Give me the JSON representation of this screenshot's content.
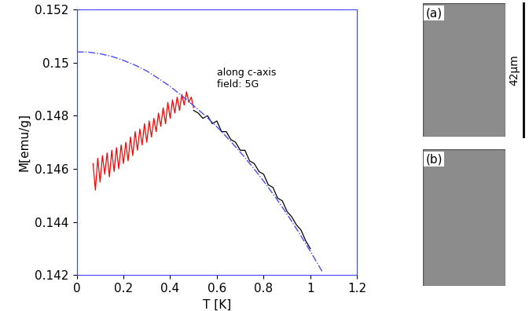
{
  "chart_data": {
    "type": "line",
    "x_label": "T [K]",
    "y_label": "M[emu/g]",
    "annotation": "along c-axis\nfield: 5G",
    "xlim": [
      0,
      1.2
    ],
    "xticks": [
      0,
      0.2,
      0.4,
      0.6,
      0.8,
      1,
      1.2
    ],
    "ylim": [
      0.142,
      0.152
    ],
    "yticks": [
      0.142,
      0.144,
      0.146,
      0.148,
      0.15,
      0.152
    ],
    "grid": false,
    "series": [
      {
        "color": "#ff0000",
        "line_style": "solid",
        "x": [
          0.07,
          0.08,
          0.09,
          0.1,
          0.11,
          0.12,
          0.13,
          0.14,
          0.15,
          0.16,
          0.17,
          0.18,
          0.19,
          0.2,
          0.21,
          0.22,
          0.23,
          0.24,
          0.25,
          0.26,
          0.27,
          0.28,
          0.29,
          0.3,
          0.31,
          0.32,
          0.33,
          0.34,
          0.35,
          0.36,
          0.37,
          0.38,
          0.39,
          0.4,
          0.41,
          0.42,
          0.43,
          0.44,
          0.45,
          0.46,
          0.47,
          0.48,
          0.49,
          0.5
        ],
        "values": [
          0.1462,
          0.1452,
          0.1464,
          0.1455,
          0.1465,
          0.1458,
          0.1466,
          0.1457,
          0.1467,
          0.1459,
          0.1468,
          0.146,
          0.1469,
          0.1462,
          0.147,
          0.1463,
          0.1472,
          0.1465,
          0.1474,
          0.1467,
          0.1475,
          0.1469,
          0.1477,
          0.147,
          0.1478,
          0.1472,
          0.1479,
          0.1474,
          0.1481,
          0.1476,
          0.1483,
          0.1477,
          0.1485,
          0.1479,
          0.1486,
          0.1481,
          0.1487,
          0.1482,
          0.1488,
          0.1484,
          0.1489,
          0.1485,
          0.1487,
          0.1483
        ]
      },
      {
        "color": "#000000",
        "line_style": "solid",
        "x": [
          0.5,
          0.52,
          0.54,
          0.56,
          0.58,
          0.6,
          0.62,
          0.64,
          0.66,
          0.68,
          0.7,
          0.72,
          0.74,
          0.76,
          0.78,
          0.8,
          0.82,
          0.84,
          0.86,
          0.88,
          0.9,
          0.92,
          0.94,
          0.96,
          0.98,
          1.0
        ],
        "values": [
          0.1482,
          0.1481,
          0.1479,
          0.148,
          0.1477,
          0.1478,
          0.1474,
          0.1474,
          0.1471,
          0.147,
          0.1467,
          0.1467,
          0.1463,
          0.1462,
          0.1459,
          0.1458,
          0.1454,
          0.1453,
          0.1449,
          0.1448,
          0.1444,
          0.1442,
          0.1439,
          0.1437,
          0.1433,
          0.143
        ]
      },
      {
        "color": "#4a4aff",
        "line_style": "dashdot",
        "x": [
          0,
          0.05,
          0.1,
          0.15,
          0.2,
          0.25,
          0.3,
          0.35,
          0.4,
          0.45,
          0.5,
          0.55,
          0.6,
          0.65,
          0.7,
          0.75,
          0.8,
          0.85,
          0.9,
          0.95,
          1.0,
          1.05
        ],
        "values": [
          0.1504,
          0.15039,
          0.15033,
          0.15023,
          0.15008,
          0.1499,
          0.14968,
          0.1494,
          0.1491,
          0.14875,
          0.14838,
          0.148,
          0.14758,
          0.14712,
          0.14663,
          0.1461,
          0.14554,
          0.14494,
          0.1443,
          0.14362,
          0.1429,
          0.14215
        ]
      }
    ]
  },
  "images": {
    "panels": [
      "(a)",
      "(b)"
    ],
    "scale_bar": "42μm"
  }
}
